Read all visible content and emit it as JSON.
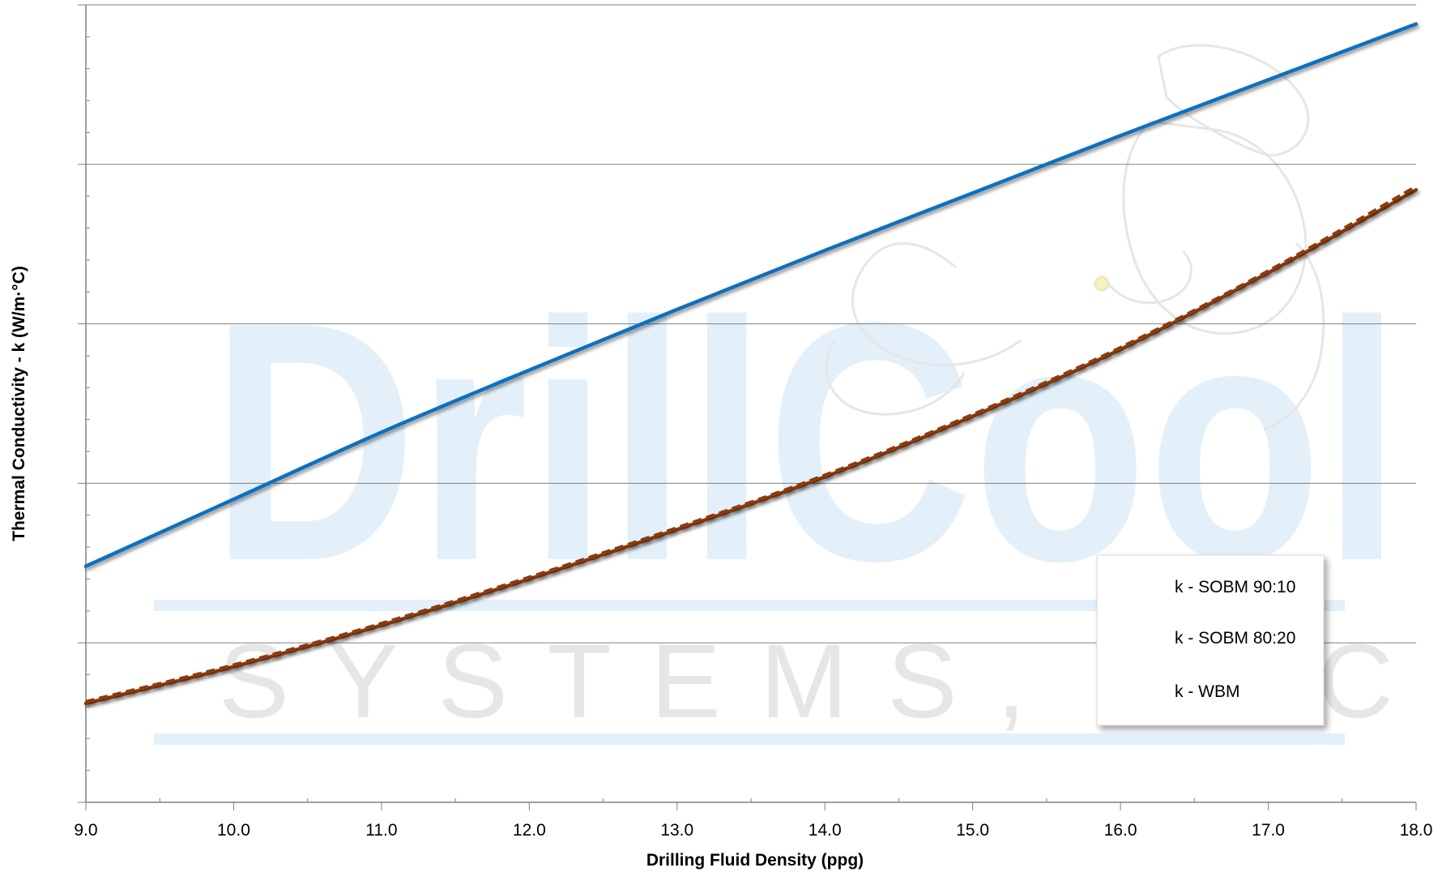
{
  "watermark": {
    "brand": "DrillCool",
    "subtitle": "SYSTEMS, INC"
  },
  "colors": {
    "sobm": "#8B3A10",
    "wbm": "#1070C0",
    "grid": "#808080",
    "watermark": "#E3F0FA",
    "watermark_text": "#E6E6E6"
  },
  "chart_data": {
    "type": "line",
    "title": "",
    "xlabel": "Drilling Fluid Density (ppg)",
    "ylabel": "Thermal Conductivity - k (W/m·°C)",
    "xlim": [
      9.0,
      18.0
    ],
    "ylim": [
      0,
      5
    ],
    "x_ticks": [
      "9.0",
      "10.0",
      "11.0",
      "12.0",
      "13.0",
      "14.0",
      "15.0",
      "16.0",
      "17.0",
      "18.0"
    ],
    "y_tick_labels_shown": false,
    "grid": "horizontal",
    "legend_position": "bottom-right",
    "series": [
      {
        "name": "k - SOBM 90:10",
        "style": "solid",
        "color": "#8B3A10",
        "x": [
          9,
          10,
          11,
          12,
          13,
          14,
          15,
          16,
          17,
          18
        ],
        "y": [
          0.62,
          0.85,
          1.11,
          1.4,
          1.71,
          2.04,
          2.42,
          2.84,
          3.32,
          3.84
        ]
      },
      {
        "name": "k - SOBM 80:20",
        "style": "dashed",
        "color": "#8B3A10",
        "x": [
          9,
          10,
          11,
          12,
          13,
          14,
          15,
          16,
          17,
          18
        ],
        "y": [
          0.63,
          0.86,
          1.12,
          1.41,
          1.72,
          2.05,
          2.43,
          2.85,
          3.33,
          3.86
        ]
      },
      {
        "name": "k - WBM",
        "style": "solid",
        "color": "#1070C0",
        "x": [
          9,
          10,
          11,
          12,
          13,
          14,
          15,
          16,
          17,
          18
        ],
        "y": [
          1.48,
          1.9,
          2.32,
          2.71,
          3.09,
          3.46,
          3.82,
          4.18,
          4.53,
          4.88
        ]
      }
    ]
  }
}
